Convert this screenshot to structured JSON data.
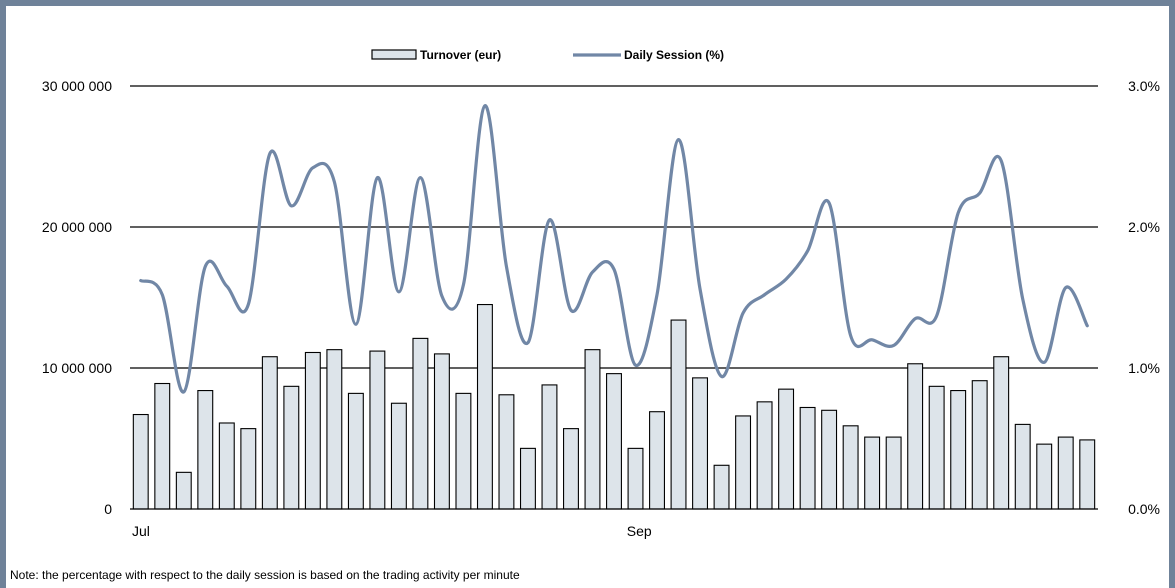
{
  "chart_data": {
    "type": "bar",
    "note": "Note: the percentage with respect to the daily session is based on the trading activity per minute",
    "legend": {
      "placement": "top-center",
      "bar_label": "Turnover (eur)",
      "line_label": "Daily Session (%)"
    },
    "x_tick_labels": [
      {
        "index": 0,
        "label": "Jul"
      },
      {
        "index": 23,
        "label": "Sep"
      }
    ],
    "left_axis": {
      "ylim": [
        0,
        30000000
      ],
      "ticks": [
        0,
        10000000,
        20000000,
        30000000
      ],
      "tick_labels": [
        "0",
        "10 000 000",
        "20 000 000",
        "30 000 000"
      ]
    },
    "right_axis": {
      "ylim": [
        0,
        3.0
      ],
      "ticks": [
        0,
        1.0,
        2.0,
        3.0
      ],
      "tick_labels": [
        "0.0%",
        "1.0%",
        "2.0%",
        "3.0%"
      ]
    },
    "grid": true,
    "colors": {
      "bar_fill": "#dde4ea",
      "bar_stroke": "#000000",
      "line": "#7187a6",
      "frame": "#6f8299",
      "grid": "#000000"
    },
    "series": [
      {
        "name": "Turnover (eur)",
        "type": "bar",
        "axis": "left",
        "values": [
          6700000,
          8900000,
          2600000,
          8400000,
          6100000,
          5700000,
          10800000,
          8700000,
          11100000,
          11300000,
          8200000,
          11200000,
          7500000,
          12100000,
          11000000,
          8200000,
          14500000,
          8100000,
          4300000,
          8800000,
          5700000,
          11300000,
          9600000,
          4300000,
          6900000,
          13400000,
          9300000,
          3100000,
          6600000,
          7600000,
          8500000,
          7200000,
          7000000,
          5900000,
          5100000,
          5100000,
          10300000,
          8700000,
          8400000,
          9100000,
          10800000,
          6000000,
          4600000,
          5100000,
          4900000
        ]
      },
      {
        "name": "Daily Session (%)",
        "type": "line",
        "axis": "right",
        "values": [
          1.62,
          1.52,
          0.83,
          1.72,
          1.58,
          1.45,
          2.52,
          2.15,
          2.42,
          2.32,
          1.31,
          2.35,
          1.54,
          2.35,
          1.51,
          1.59,
          2.86,
          1.72,
          1.18,
          2.05,
          1.41,
          1.68,
          1.7,
          1.02,
          1.52,
          2.62,
          1.56,
          0.94,
          1.39,
          1.52,
          1.63,
          1.83,
          2.17,
          1.23,
          1.2,
          1.16,
          1.35,
          1.37,
          2.1,
          2.24,
          2.47,
          1.49,
          1.04,
          1.57,
          1.3
        ]
      }
    ]
  }
}
